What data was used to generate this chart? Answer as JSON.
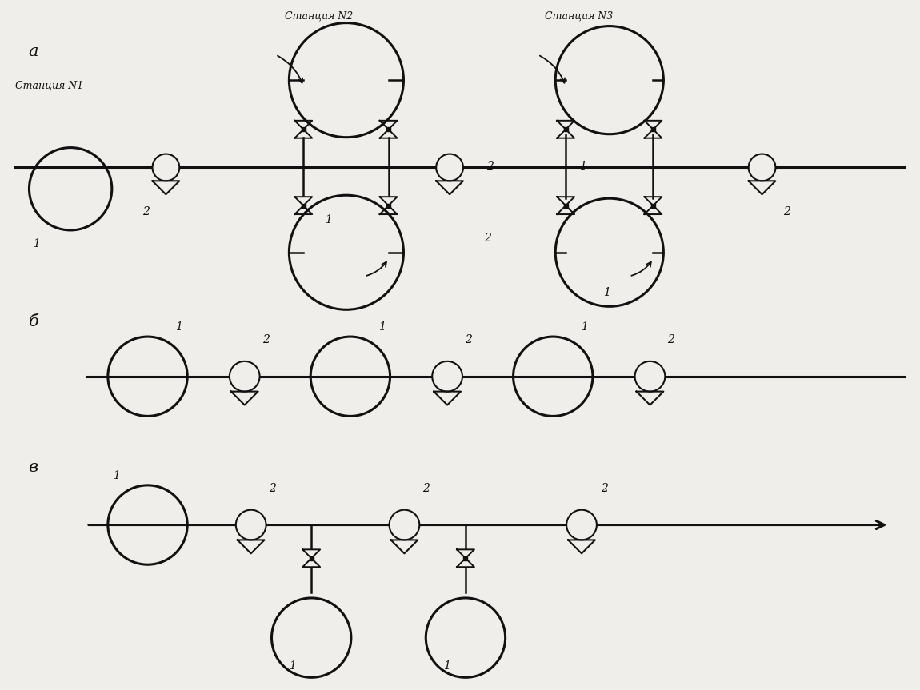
{
  "bg_color": "#f0eeea",
  "line_color": "#111111",
  "section_a_label": "a",
  "section_b_label": "б",
  "section_v_label": "в",
  "station1_label": "Станция N1",
  "station2_label": "Станция N2",
  "station3_label": "Станция N3"
}
